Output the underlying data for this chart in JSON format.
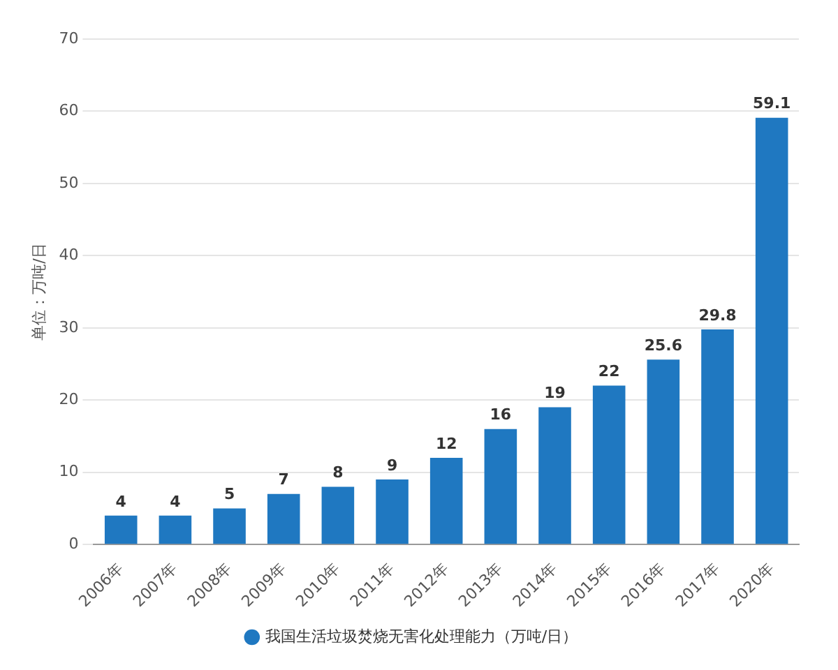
{
  "chart_data": {
    "type": "bar",
    "ylabel": "单位：万吨/日",
    "categories": [
      "2006年",
      "2007年",
      "2008年",
      "2009年",
      "2010年",
      "2011年",
      "2012年",
      "2013年",
      "2014年",
      "2015年",
      "2016年",
      "2017年",
      "2020年"
    ],
    "series": [
      {
        "name": "我国生活垃圾焚烧无害化处理能力（万吨/日）",
        "color": "#1f78c1",
        "values": [
          4,
          4,
          5,
          7,
          8,
          9,
          12,
          16,
          19,
          22,
          25.6,
          29.8,
          59.1
        ]
      }
    ],
    "ylim": [
      0,
      70
    ],
    "yticks": [
      0,
      10,
      20,
      30,
      40,
      50,
      60,
      70
    ],
    "grid": "y",
    "legend": "bottom",
    "data_labels": true
  }
}
